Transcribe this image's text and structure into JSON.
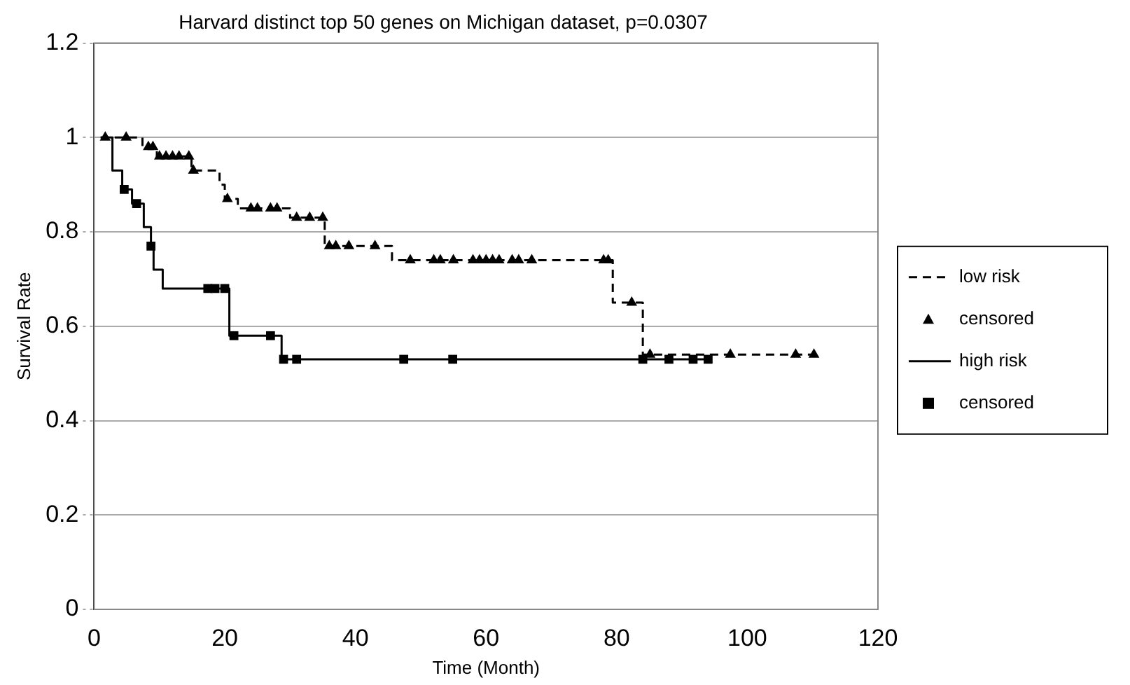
{
  "chart_data": {
    "type": "step",
    "title": "Harvard distinct top 50 genes on Michigan dataset, p=0.0307",
    "xlabel": "Time (Month)",
    "ylabel": "Survival Rate",
    "xlim": [
      0,
      120
    ],
    "xticks": [
      0,
      20,
      40,
      60,
      80,
      100,
      120
    ],
    "ylim": [
      0,
      1.2
    ],
    "yticks": [
      0,
      0.2,
      0.4,
      0.6,
      0.8,
      1,
      1.2
    ],
    "grid": "y",
    "legend": "right",
    "series": [
      {
        "name": "low risk",
        "type": "step",
        "color": "#000000",
        "line_style": "dashed",
        "marker": "none",
        "x": [
          1,
          7.4,
          9.6,
          14.9,
          19.2,
          20,
          22,
          30,
          35.3,
          45.6,
          79.4,
          84,
          110.5
        ],
        "values": [
          1,
          0.98,
          0.96,
          0.93,
          0.9,
          0.87,
          0.85,
          0.83,
          0.77,
          0.74,
          0.65,
          0.54,
          0.54
        ]
      },
      {
        "name": "censored",
        "type": "scatter",
        "color": "#000000",
        "marker": "triangle",
        "x": [
          1.7,
          4.9,
          8.3,
          9,
          10,
          11,
          12,
          13,
          14.5,
          15.2,
          20.4,
          24,
          25,
          27,
          28,
          31,
          33,
          35,
          36,
          37,
          39,
          43,
          48.4,
          52,
          53,
          55,
          58,
          59,
          60,
          61,
          62,
          64,
          65,
          67,
          78,
          78.7,
          82.3,
          85.1,
          97.4,
          107.4,
          110.2
        ],
        "values": [
          1,
          1,
          0.98,
          0.98,
          0.96,
          0.96,
          0.96,
          0.96,
          0.96,
          0.93,
          0.87,
          0.85,
          0.85,
          0.85,
          0.85,
          0.83,
          0.83,
          0.83,
          0.77,
          0.77,
          0.77,
          0.77,
          0.74,
          0.74,
          0.74,
          0.74,
          0.74,
          0.74,
          0.74,
          0.74,
          0.74,
          0.74,
          0.74,
          0.74,
          0.74,
          0.74,
          0.65,
          0.54,
          0.54,
          0.54,
          0.54
        ]
      },
      {
        "name": "high risk",
        "type": "step",
        "color": "#000000",
        "line_style": "solid",
        "marker": "none",
        "x": [
          1,
          2.8,
          4.3,
          5.8,
          7.6,
          8.7,
          9.1,
          10.5,
          20.7,
          28.7,
          94
        ],
        "values": [
          1,
          0.93,
          0.89,
          0.86,
          0.81,
          0.77,
          0.72,
          0.68,
          0.58,
          0.53,
          0.53
        ]
      },
      {
        "name": "censored",
        "type": "scatter",
        "color": "#000000",
        "marker": "square",
        "x": [
          4.6,
          6.5,
          8.7,
          17.4,
          18.5,
          20,
          21.4,
          27,
          29,
          31,
          47.4,
          54.9,
          84,
          88,
          91.7,
          94
        ],
        "values": [
          0.89,
          0.86,
          0.77,
          0.68,
          0.68,
          0.68,
          0.58,
          0.58,
          0.53,
          0.53,
          0.53,
          0.53,
          0.53,
          0.53,
          0.53,
          0.53
        ]
      }
    ]
  }
}
